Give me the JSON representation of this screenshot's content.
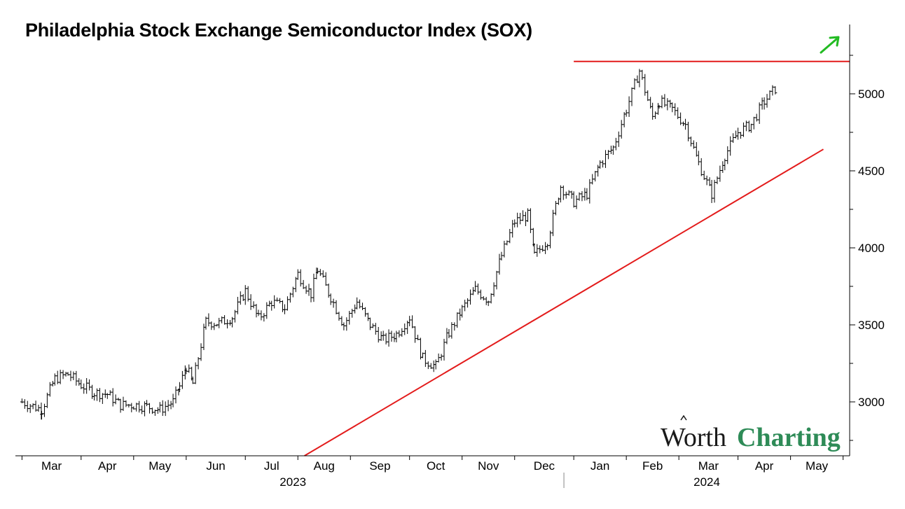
{
  "chart_data": {
    "type": "ohlc",
    "title": "Philadelphia Stock Exchange Semiconductor Index (SOX)",
    "xlabel": "",
    "ylabel": "",
    "ylim": [
      2650,
      5450
    ],
    "y_ticks": [
      3000,
      3500,
      4000,
      4500,
      5000
    ],
    "x_month_labels": [
      "Mar",
      "Apr",
      "May",
      "Jun",
      "Jul",
      "Aug",
      "Sep",
      "Oct",
      "Nov",
      "Dec",
      "Jan",
      "Feb",
      "Mar",
      "Apr",
      "May"
    ],
    "x_year_labels": [
      "2023",
      "2024"
    ],
    "grid": false,
    "legend": "none",
    "series_color": "#000000",
    "series": [
      {
        "values": [
          [
            2023.16,
            3000
          ],
          [
            2023.19,
            2950
          ],
          [
            2023.21,
            3150
          ],
          [
            2023.23,
            3180
          ],
          [
            2023.25,
            3110
          ],
          [
            2023.27,
            3060
          ],
          [
            2023.29,
            3050
          ],
          [
            2023.31,
            2980
          ],
          [
            2023.33,
            2980
          ],
          [
            2023.35,
            2970
          ],
          [
            2023.37,
            2950
          ],
          [
            2023.39,
            3000
          ],
          [
            2023.4,
            3100
          ],
          [
            2023.41,
            3230
          ],
          [
            2023.42,
            3120
          ],
          [
            2023.44,
            3520
          ],
          [
            2023.46,
            3510
          ],
          [
            2023.48,
            3550
          ],
          [
            2023.5,
            3720
          ],
          [
            2023.52,
            3540
          ],
          [
            2023.54,
            3650
          ],
          [
            2023.56,
            3610
          ],
          [
            2023.58,
            3830
          ],
          [
            2023.6,
            3700
          ],
          [
            2023.61,
            3860
          ],
          [
            2023.63,
            3680
          ],
          [
            2023.65,
            3500
          ],
          [
            2023.67,
            3650
          ],
          [
            2023.69,
            3500
          ],
          [
            2023.71,
            3400
          ],
          [
            2023.73,
            3440
          ],
          [
            2023.75,
            3550
          ],
          [
            2023.77,
            3280
          ],
          [
            2023.79,
            3230
          ],
          [
            2023.81,
            3450
          ],
          [
            2023.83,
            3600
          ],
          [
            2023.85,
            3730
          ],
          [
            2023.87,
            3660
          ],
          [
            2023.89,
            3950
          ],
          [
            2023.91,
            4170
          ],
          [
            2023.93,
            4210
          ],
          [
            2023.94,
            3950
          ],
          [
            2023.96,
            4050
          ],
          [
            2023.98,
            4400
          ],
          [
            2024.0,
            4300
          ],
          [
            2024.02,
            4350
          ],
          [
            2024.04,
            4550
          ],
          [
            2024.06,
            4650
          ],
          [
            2024.08,
            4900
          ],
          [
            2024.1,
            5150
          ],
          [
            2024.12,
            4850
          ],
          [
            2024.13,
            4950
          ],
          [
            2024.15,
            4900
          ],
          [
            2024.17,
            4800
          ],
          [
            2024.19,
            4550
          ],
          [
            2024.21,
            4350
          ],
          [
            2024.23,
            4600
          ],
          [
            2024.25,
            4750
          ],
          [
            2024.27,
            4800
          ],
          [
            2024.29,
            4950
          ],
          [
            2024.31,
            5050
          ]
        ]
      }
    ],
    "annotations": [
      {
        "kind": "horizontal-resistance",
        "value": 5210,
        "color": "#e31b1b"
      },
      {
        "kind": "rising-support-trendline",
        "from": [
          2023.59,
          2650
        ],
        "to": [
          2024.38,
          4640
        ],
        "color": "#e31b1b"
      },
      {
        "kind": "up-arrow",
        "color": "#22bb22"
      }
    ]
  },
  "brand": {
    "word1": "Worth",
    "word2": "Charting"
  }
}
